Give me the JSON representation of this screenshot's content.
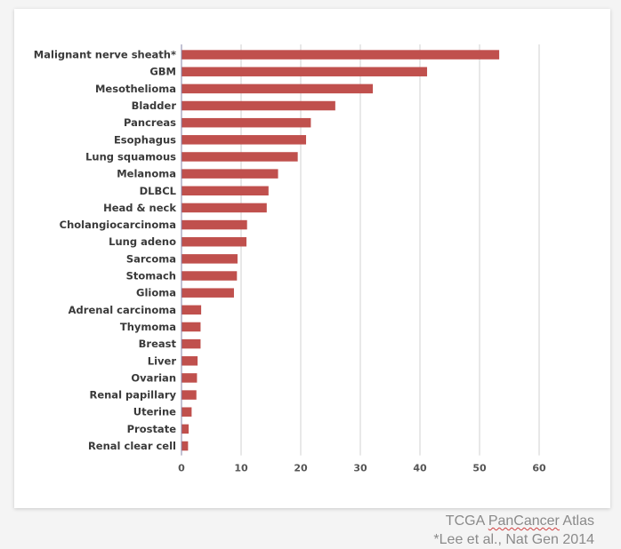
{
  "chart_data": {
    "type": "bar",
    "orientation": "horizontal",
    "categories": [
      "Malignant nerve sheath*",
      "GBM",
      "Mesothelioma",
      "Bladder",
      "Pancreas",
      "Esophagus",
      "Lung squamous",
      "Melanoma",
      "DLBCL",
      "Head & neck",
      "Cholangiocarcinoma",
      "Lung adeno",
      "Sarcoma",
      "Stomach",
      "Glioma",
      "Adrenal carcinoma",
      "Thymoma",
      "Breast",
      "Liver",
      "Ovarian",
      "Renal papillary",
      "Uterine",
      "Prostate",
      "Renal clear cell"
    ],
    "values": [
      53.3,
      41.2,
      32.1,
      25.8,
      21.7,
      20.9,
      19.5,
      16.2,
      14.6,
      14.3,
      11.0,
      10.9,
      9.4,
      9.3,
      8.8,
      3.3,
      3.2,
      3.2,
      2.7,
      2.6,
      2.5,
      1.7,
      1.2,
      1.1
    ],
    "xticks": [
      0,
      10,
      20,
      30,
      40,
      50,
      60
    ],
    "xlim": [
      0,
      60
    ],
    "grid": true,
    "bar_color": "#c0504d",
    "grid_color": "#d0d0d0",
    "axis_color": "#8585a8"
  },
  "caption": {
    "line1_prefix": "TCGA ",
    "line1_flagged": "PanCancer",
    "line1_suffix": " Atlas",
    "line2": "*Lee et al., Nat Gen 2014"
  }
}
